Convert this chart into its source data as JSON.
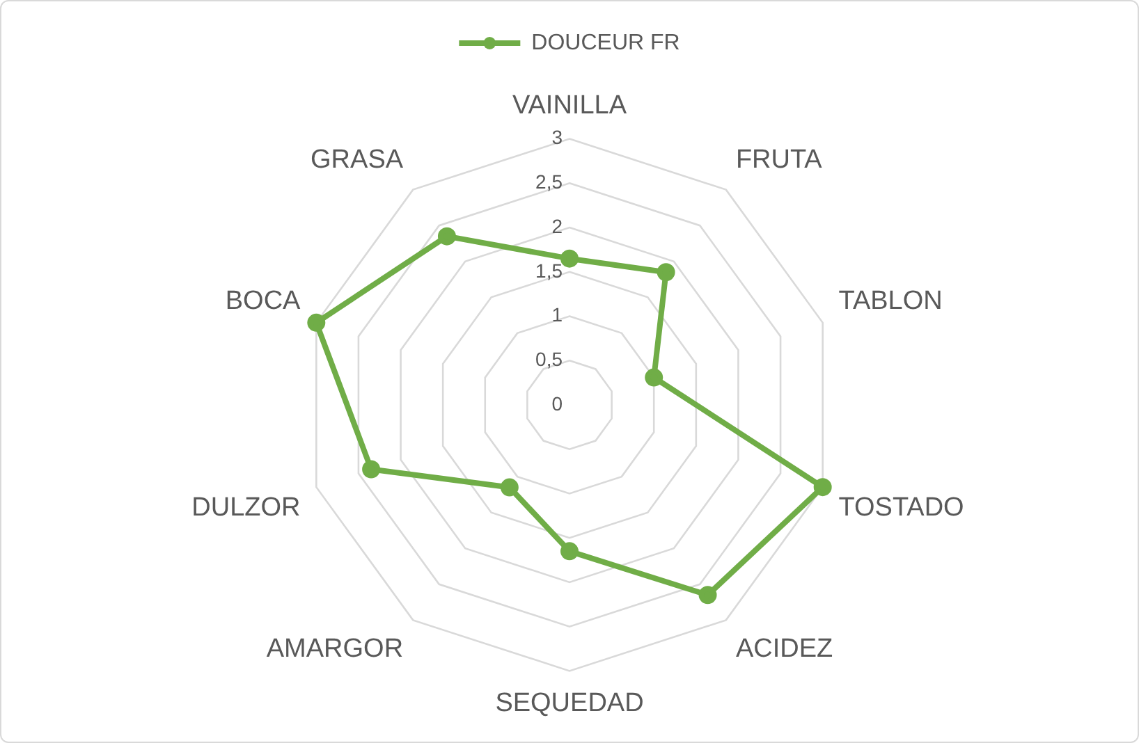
{
  "chart_data": {
    "type": "radar",
    "legend": "top",
    "grid": true,
    "marker": "circle",
    "categories": [
      "VAINILLA",
      "FRUTA",
      "TABLON",
      "TOSTADO",
      "ACIDEZ",
      "SEQUEDAD",
      "AMARGOR",
      "DULZOR",
      "BOCA",
      "GRASA"
    ],
    "ylim": [
      0,
      3
    ],
    "yticks": [
      0,
      {
        "value": 0.5,
        "label": "0,5"
      },
      1,
      {
        "value": 1.5,
        "label": "1,5"
      },
      2,
      {
        "value": 2.5,
        "label": "2,5"
      },
      3
    ],
    "series": [
      {
        "name": "DOUCEUR FR",
        "color": "#70ad47",
        "values": [
          1.65,
          1.85,
          1.0,
          3,
          2.65,
          1.65,
          1.15,
          2.35,
          3,
          2.35
        ]
      }
    ]
  }
}
